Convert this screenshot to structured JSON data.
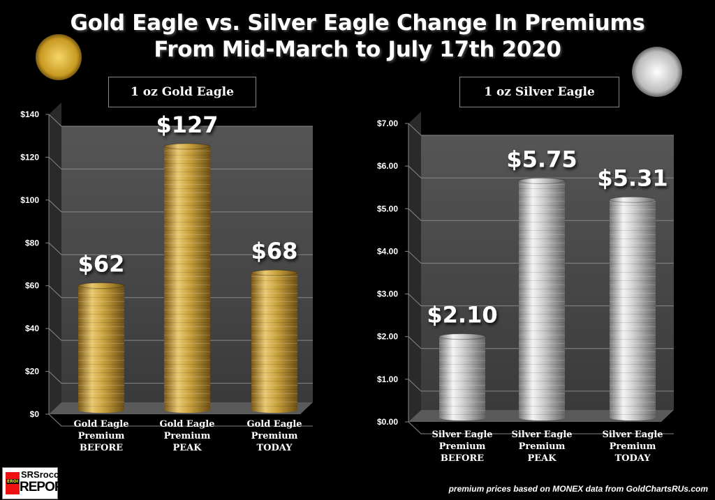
{
  "title": {
    "line1": "Gold Eagle vs. Silver Eagle Change In Premiums",
    "line2": "From Mid-March to July 17th 2020"
  },
  "source_note": "premium prices based on MONEX data from GoldChartsRUs.com",
  "logo": {
    "badge": "EROI",
    "line1": "SRSrocco",
    "line2": "REPORT"
  },
  "chart_data": [
    {
      "type": "bar",
      "title": "1 oz Gold Eagle",
      "categories": [
        [
          "Gold Eagle",
          "Premium",
          "BEFORE"
        ],
        [
          "Gold Eagle",
          "Premium",
          "PEAK"
        ],
        [
          "Gold Eagle",
          "Premium",
          "TODAY"
        ]
      ],
      "values": [
        62,
        127,
        68
      ],
      "data_labels": [
        "$62",
        "$127",
        "$68"
      ],
      "yticks": [
        "$0",
        "$20",
        "$40",
        "$60",
        "$80",
        "$100",
        "$120",
        "$140"
      ],
      "ylim": [
        0,
        140
      ],
      "color": "#c9a23e",
      "grid": true
    },
    {
      "type": "bar",
      "title": "1 oz Silver Eagle",
      "categories": [
        [
          "Silver Eagle",
          "Premium",
          "BEFORE"
        ],
        [
          "Silver Eagle",
          "Premium",
          "PEAK"
        ],
        [
          "Silver Eagle",
          "Premium",
          "TODAY"
        ]
      ],
      "values": [
        2.1,
        5.75,
        5.31
      ],
      "data_labels": [
        "$2.10",
        "$5.75",
        "$5.31"
      ],
      "yticks": [
        "$0.00",
        "$1.00",
        "$2.00",
        "$3.00",
        "$4.00",
        "$5.00",
        "$6.00",
        "$7.00"
      ],
      "ylim": [
        0,
        7
      ],
      "color": "#c8c8c8",
      "grid": true
    }
  ]
}
